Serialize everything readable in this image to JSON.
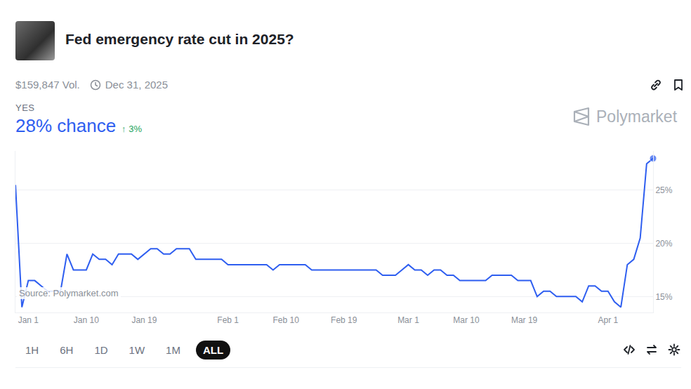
{
  "header": {
    "title": "Fed emergency rate cut in 2025?",
    "volume": "$159,847 Vol.",
    "end_date": "Dec 31, 2025",
    "outcome": "YES",
    "chance": "28% chance",
    "change": "↑ 3%",
    "brand": "Polymarket",
    "source": "Source: Polymarket.com",
    "ranges": [
      "1H",
      "6H",
      "1D",
      "1W",
      "1M",
      "ALL"
    ],
    "selected_range": "ALL"
  },
  "chart_data": {
    "type": "line",
    "color": "#2e5ef0",
    "grid": true,
    "categories": [
      null,
      null,
      "Jan 1",
      null,
      null,
      null,
      null,
      null,
      null,
      null,
      null,
      "Jan 10",
      null,
      null,
      null,
      null,
      null,
      null,
      null,
      null,
      "Jan 19",
      null,
      null,
      null,
      null,
      null,
      null,
      null,
      null,
      null,
      null,
      null,
      null,
      "Feb 1",
      null,
      null,
      null,
      null,
      null,
      null,
      null,
      null,
      "Feb 10",
      null,
      null,
      null,
      null,
      null,
      null,
      null,
      null,
      "Feb 19",
      null,
      null,
      null,
      null,
      null,
      null,
      null,
      null,
      null,
      "Mar 1",
      null,
      null,
      null,
      null,
      null,
      null,
      null,
      null,
      "Mar 10",
      null,
      null,
      null,
      null,
      null,
      null,
      null,
      null,
      "Mar 19",
      null,
      null,
      null,
      null,
      null,
      null,
      null,
      null,
      null,
      null,
      null,
      null,
      "Apr 1",
      null,
      null,
      null,
      null,
      null,
      null,
      null
    ],
    "values": [
      25.5,
      14,
      16.5,
      16.5,
      16,
      15.5,
      15.5,
      15.5,
      19,
      17.5,
      17.5,
      17.5,
      19,
      18.5,
      18.5,
      18,
      19,
      19,
      19,
      18.5,
      19,
      19.5,
      19.5,
      19,
      19,
      19.5,
      19.5,
      19.5,
      18.5,
      18.5,
      18.5,
      18.5,
      18.5,
      18,
      18,
      18,
      18,
      18,
      18,
      18,
      17.5,
      18,
      18,
      18,
      18,
      18,
      17.5,
      17.5,
      17.5,
      17.5,
      17.5,
      17.5,
      17.5,
      17.5,
      17.5,
      17.5,
      17.5,
      17,
      17,
      17,
      17.5,
      18,
      17.5,
      17.5,
      17,
      17.5,
      17.5,
      17,
      17,
      16.5,
      16.5,
      16.5,
      16.5,
      16.5,
      17,
      17,
      17,
      17,
      16.5,
      16.5,
      16.5,
      15,
      15.5,
      15.5,
      15,
      15,
      15,
      15,
      14.5,
      16,
      16,
      15.5,
      15.5,
      14.5,
      14,
      18,
      18.5,
      20.5,
      27.5,
      28
    ],
    "ylim": [
      13.5,
      28.7
    ],
    "yticks": [
      {
        "value": 15,
        "label": "15%"
      },
      {
        "value": 20,
        "label": "20%"
      },
      {
        "value": 25,
        "label": "25%"
      }
    ]
  }
}
